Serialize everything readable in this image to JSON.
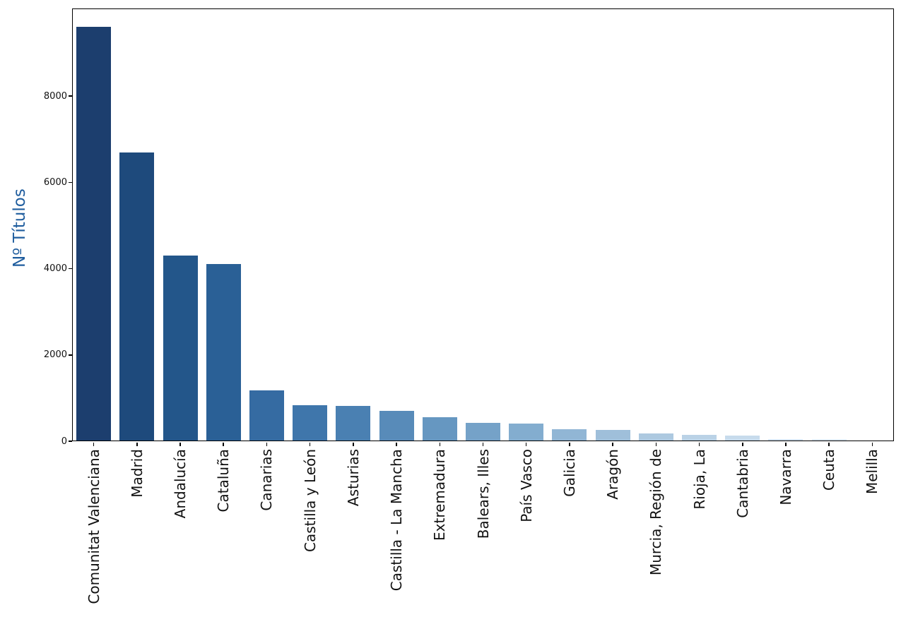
{
  "chart_data": {
    "type": "bar",
    "title": "",
    "xlabel": "",
    "ylabel": "Nº Títulos",
    "ylabel_color": "#1f5d9e",
    "tick_label_color": "#111111",
    "axis_color": "#000000",
    "background_color": "#ffffff",
    "grid": false,
    "legend": null,
    "ylim": [
      0,
      10030
    ],
    "yticks": [
      0,
      2000,
      4000,
      6000,
      8000
    ],
    "categories": [
      "Comunitat Valenciana",
      "Madrid",
      "Andalucía",
      "Cataluña",
      "Canarias",
      "Castilla y León",
      "Asturias",
      "Castilla - La Mancha",
      "Extremadura",
      "Balears, Illes",
      "País Vasco",
      "Galicia",
      "Aragón",
      "Murcia, Región de",
      "Rioja, La",
      "Cantabria",
      "Navarra",
      "Ceuta",
      "Melilla"
    ],
    "values": [
      9600,
      6700,
      4300,
      4100,
      1180,
      830,
      810,
      700,
      560,
      420,
      410,
      270,
      265,
      180,
      140,
      130,
      55,
      50,
      10
    ],
    "bar_colors": [
      "#1c3e6e",
      "#1e4a7c",
      "#23568a",
      "#2a6096",
      "#356ba2",
      "#3f76ab",
      "#4a80b2",
      "#588bb9",
      "#6697c1",
      "#75a2c8",
      "#83adcf",
      "#91b6d5",
      "#9fbfda",
      "#adc9e0",
      "#bad2e6",
      "#c7dbec",
      "#d3e2f0",
      "#dde9f4",
      "#e7eff8"
    ]
  }
}
